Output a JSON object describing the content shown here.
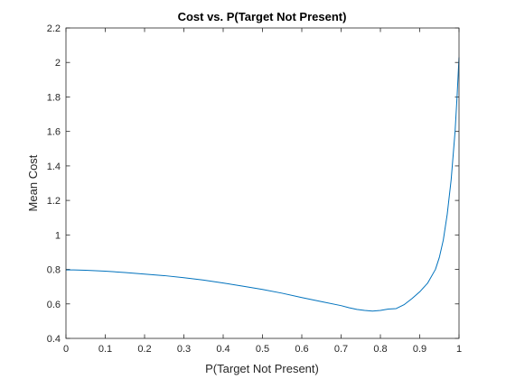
{
  "chart_data": {
    "type": "line",
    "title": "Cost vs. P(Target Not Present)",
    "xlabel": "P(Target Not Present)",
    "ylabel": "Mean Cost",
    "xlim": [
      0,
      1
    ],
    "ylim": [
      0.4,
      2.2
    ],
    "xticks": [
      "0",
      "0.1",
      "0.2",
      "0.3",
      "0.4",
      "0.5",
      "0.6",
      "0.7",
      "0.8",
      "0.9",
      "1"
    ],
    "yticks": [
      "0.4",
      "0.6",
      "0.8",
      "1",
      "1.2",
      "1.4",
      "1.6",
      "1.8",
      "2",
      "2.2"
    ],
    "grid": false,
    "box": true,
    "series_color": "#0072BD",
    "x": [
      0,
      0.02,
      0.05,
      0.1,
      0.15,
      0.2,
      0.25,
      0.3,
      0.35,
      0.4,
      0.45,
      0.5,
      0.55,
      0.6,
      0.65,
      0.7,
      0.72,
      0.74,
      0.76,
      0.78,
      0.8,
      0.82,
      0.84,
      0.86,
      0.88,
      0.9,
      0.92,
      0.94,
      0.95,
      0.96,
      0.97,
      0.98,
      0.99,
      0.995,
      1
    ],
    "y": [
      0.797,
      0.797,
      0.795,
      0.79,
      0.782,
      0.773,
      0.764,
      0.752,
      0.738,
      0.721,
      0.703,
      0.684,
      0.662,
      0.637,
      0.613,
      0.59,
      0.578,
      0.568,
      0.562,
      0.558,
      0.562,
      0.57,
      0.573,
      0.595,
      0.63,
      0.67,
      0.72,
      0.8,
      0.87,
      0.97,
      1.12,
      1.32,
      1.6,
      1.8,
      2.03
    ]
  }
}
